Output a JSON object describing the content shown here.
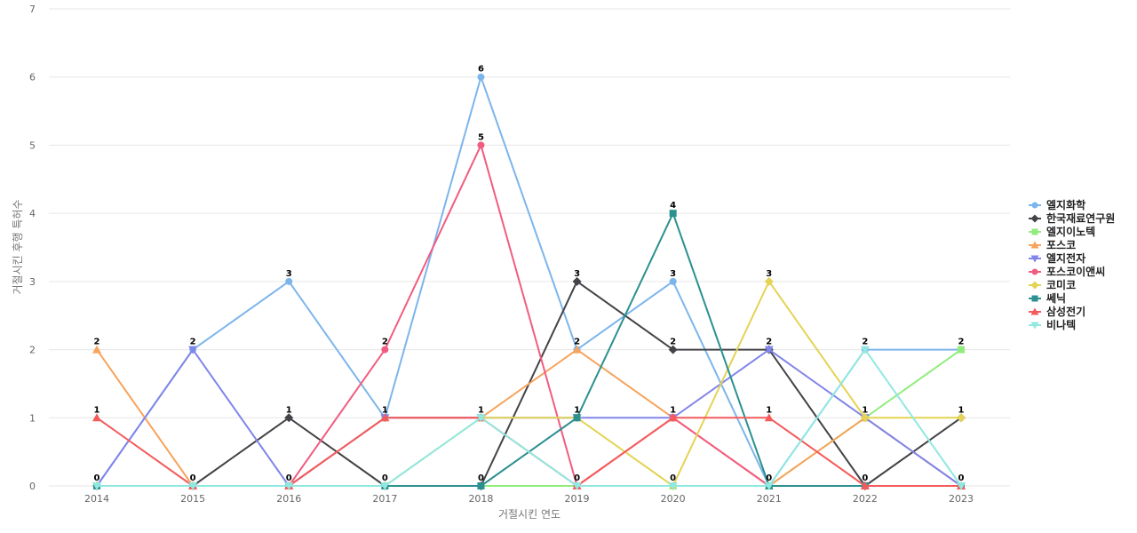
{
  "chart_data": {
    "type": "line",
    "title": "",
    "xlabel": "거절시킨 연도",
    "ylabel": "거절시킨 후행 특허수",
    "x": [
      "2014",
      "2015",
      "2016",
      "2017",
      "2018",
      "2019",
      "2020",
      "2021",
      "2022",
      "2023"
    ],
    "ylim": [
      0,
      7
    ],
    "yticks": [
      0,
      1,
      2,
      3,
      4,
      5,
      6,
      7
    ],
    "grid": true,
    "legend_position": "right",
    "series": [
      {
        "name": "엘지화학",
        "color": "#7cb5ec",
        "marker": "circle",
        "values": [
          0,
          2,
          3,
          1,
          6,
          2,
          3,
          0,
          2,
          2
        ]
      },
      {
        "name": "한국재료연구원",
        "color": "#434348",
        "marker": "diamond",
        "values": [
          0,
          0,
          1,
          0,
          0,
          3,
          2,
          2,
          0,
          1
        ]
      },
      {
        "name": "엘지이노텍",
        "color": "#90ed7d",
        "marker": "square",
        "values": [
          0,
          0,
          0,
          0,
          0,
          0,
          0,
          0,
          1,
          2
        ]
      },
      {
        "name": "포스코",
        "color": "#f7a35c",
        "marker": "triangle",
        "values": [
          2,
          0,
          0,
          1,
          1,
          2,
          1,
          0,
          1,
          0
        ]
      },
      {
        "name": "엘지전자",
        "color": "#8085e9",
        "marker": "triangle-down",
        "values": [
          0,
          2,
          0,
          1,
          1,
          1,
          1,
          2,
          1,
          0
        ]
      },
      {
        "name": "포스코이앤씨",
        "color": "#f15c80",
        "marker": "circle",
        "values": [
          0,
          0,
          0,
          2,
          5,
          0,
          1,
          0,
          0,
          0
        ]
      },
      {
        "name": "코미코",
        "color": "#e4d354",
        "marker": "diamond",
        "values": [
          0,
          0,
          0,
          0,
          1,
          1,
          0,
          3,
          1,
          1
        ]
      },
      {
        "name": "쎄닉",
        "color": "#2b908f",
        "marker": "square",
        "values": [
          0,
          0,
          0,
          0,
          0,
          1,
          4,
          0,
          0,
          0
        ]
      },
      {
        "name": "삼성전기",
        "color": "#f45b5b",
        "marker": "triangle",
        "values": [
          1,
          0,
          0,
          1,
          1,
          0,
          1,
          1,
          0,
          0
        ]
      },
      {
        "name": "비나텍",
        "color": "#91e8e1",
        "marker": "triangle-down",
        "values": [
          0,
          0,
          0,
          0,
          1,
          0,
          0,
          0,
          2,
          0
        ]
      }
    ],
    "point_labels": [
      {
        "series": 3,
        "i": 0,
        "text": "2"
      },
      {
        "series": 8,
        "i": 0,
        "text": "1"
      },
      {
        "series": 0,
        "i": 0,
        "text": "0"
      },
      {
        "series": 4,
        "i": 1,
        "text": "2"
      },
      {
        "series": 1,
        "i": 1,
        "text": "0"
      },
      {
        "series": 0,
        "i": 2,
        "text": "3"
      },
      {
        "series": 1,
        "i": 2,
        "text": "1"
      },
      {
        "series": 4,
        "i": 2,
        "text": "0"
      },
      {
        "series": 5,
        "i": 3,
        "text": "2"
      },
      {
        "series": 0,
        "i": 3,
        "text": "1"
      },
      {
        "series": 1,
        "i": 3,
        "text": "0"
      },
      {
        "series": 0,
        "i": 4,
        "text": "6"
      },
      {
        "series": 5,
        "i": 4,
        "text": "5"
      },
      {
        "series": 3,
        "i": 4,
        "text": "1"
      },
      {
        "series": 1,
        "i": 4,
        "text": "0"
      },
      {
        "series": 1,
        "i": 5,
        "text": "3"
      },
      {
        "series": 0,
        "i": 5,
        "text": "2"
      },
      {
        "series": 4,
        "i": 5,
        "text": "1"
      },
      {
        "series": 5,
        "i": 5,
        "text": "0"
      },
      {
        "series": 7,
        "i": 6,
        "text": "4"
      },
      {
        "series": 0,
        "i": 6,
        "text": "3"
      },
      {
        "series": 1,
        "i": 6,
        "text": "2"
      },
      {
        "series": 4,
        "i": 6,
        "text": "1"
      },
      {
        "series": 6,
        "i": 6,
        "text": "0"
      },
      {
        "series": 6,
        "i": 7,
        "text": "3"
      },
      {
        "series": 1,
        "i": 7,
        "text": "2"
      },
      {
        "series": 8,
        "i": 7,
        "text": "1"
      },
      {
        "series": 0,
        "i": 7,
        "text": "0"
      },
      {
        "series": 0,
        "i": 8,
        "text": "2"
      },
      {
        "series": 4,
        "i": 8,
        "text": "1"
      },
      {
        "series": 1,
        "i": 8,
        "text": "0"
      },
      {
        "series": 0,
        "i": 9,
        "text": "2"
      },
      {
        "series": 6,
        "i": 9,
        "text": "1"
      },
      {
        "series": 4,
        "i": 9,
        "text": "0"
      }
    ]
  }
}
